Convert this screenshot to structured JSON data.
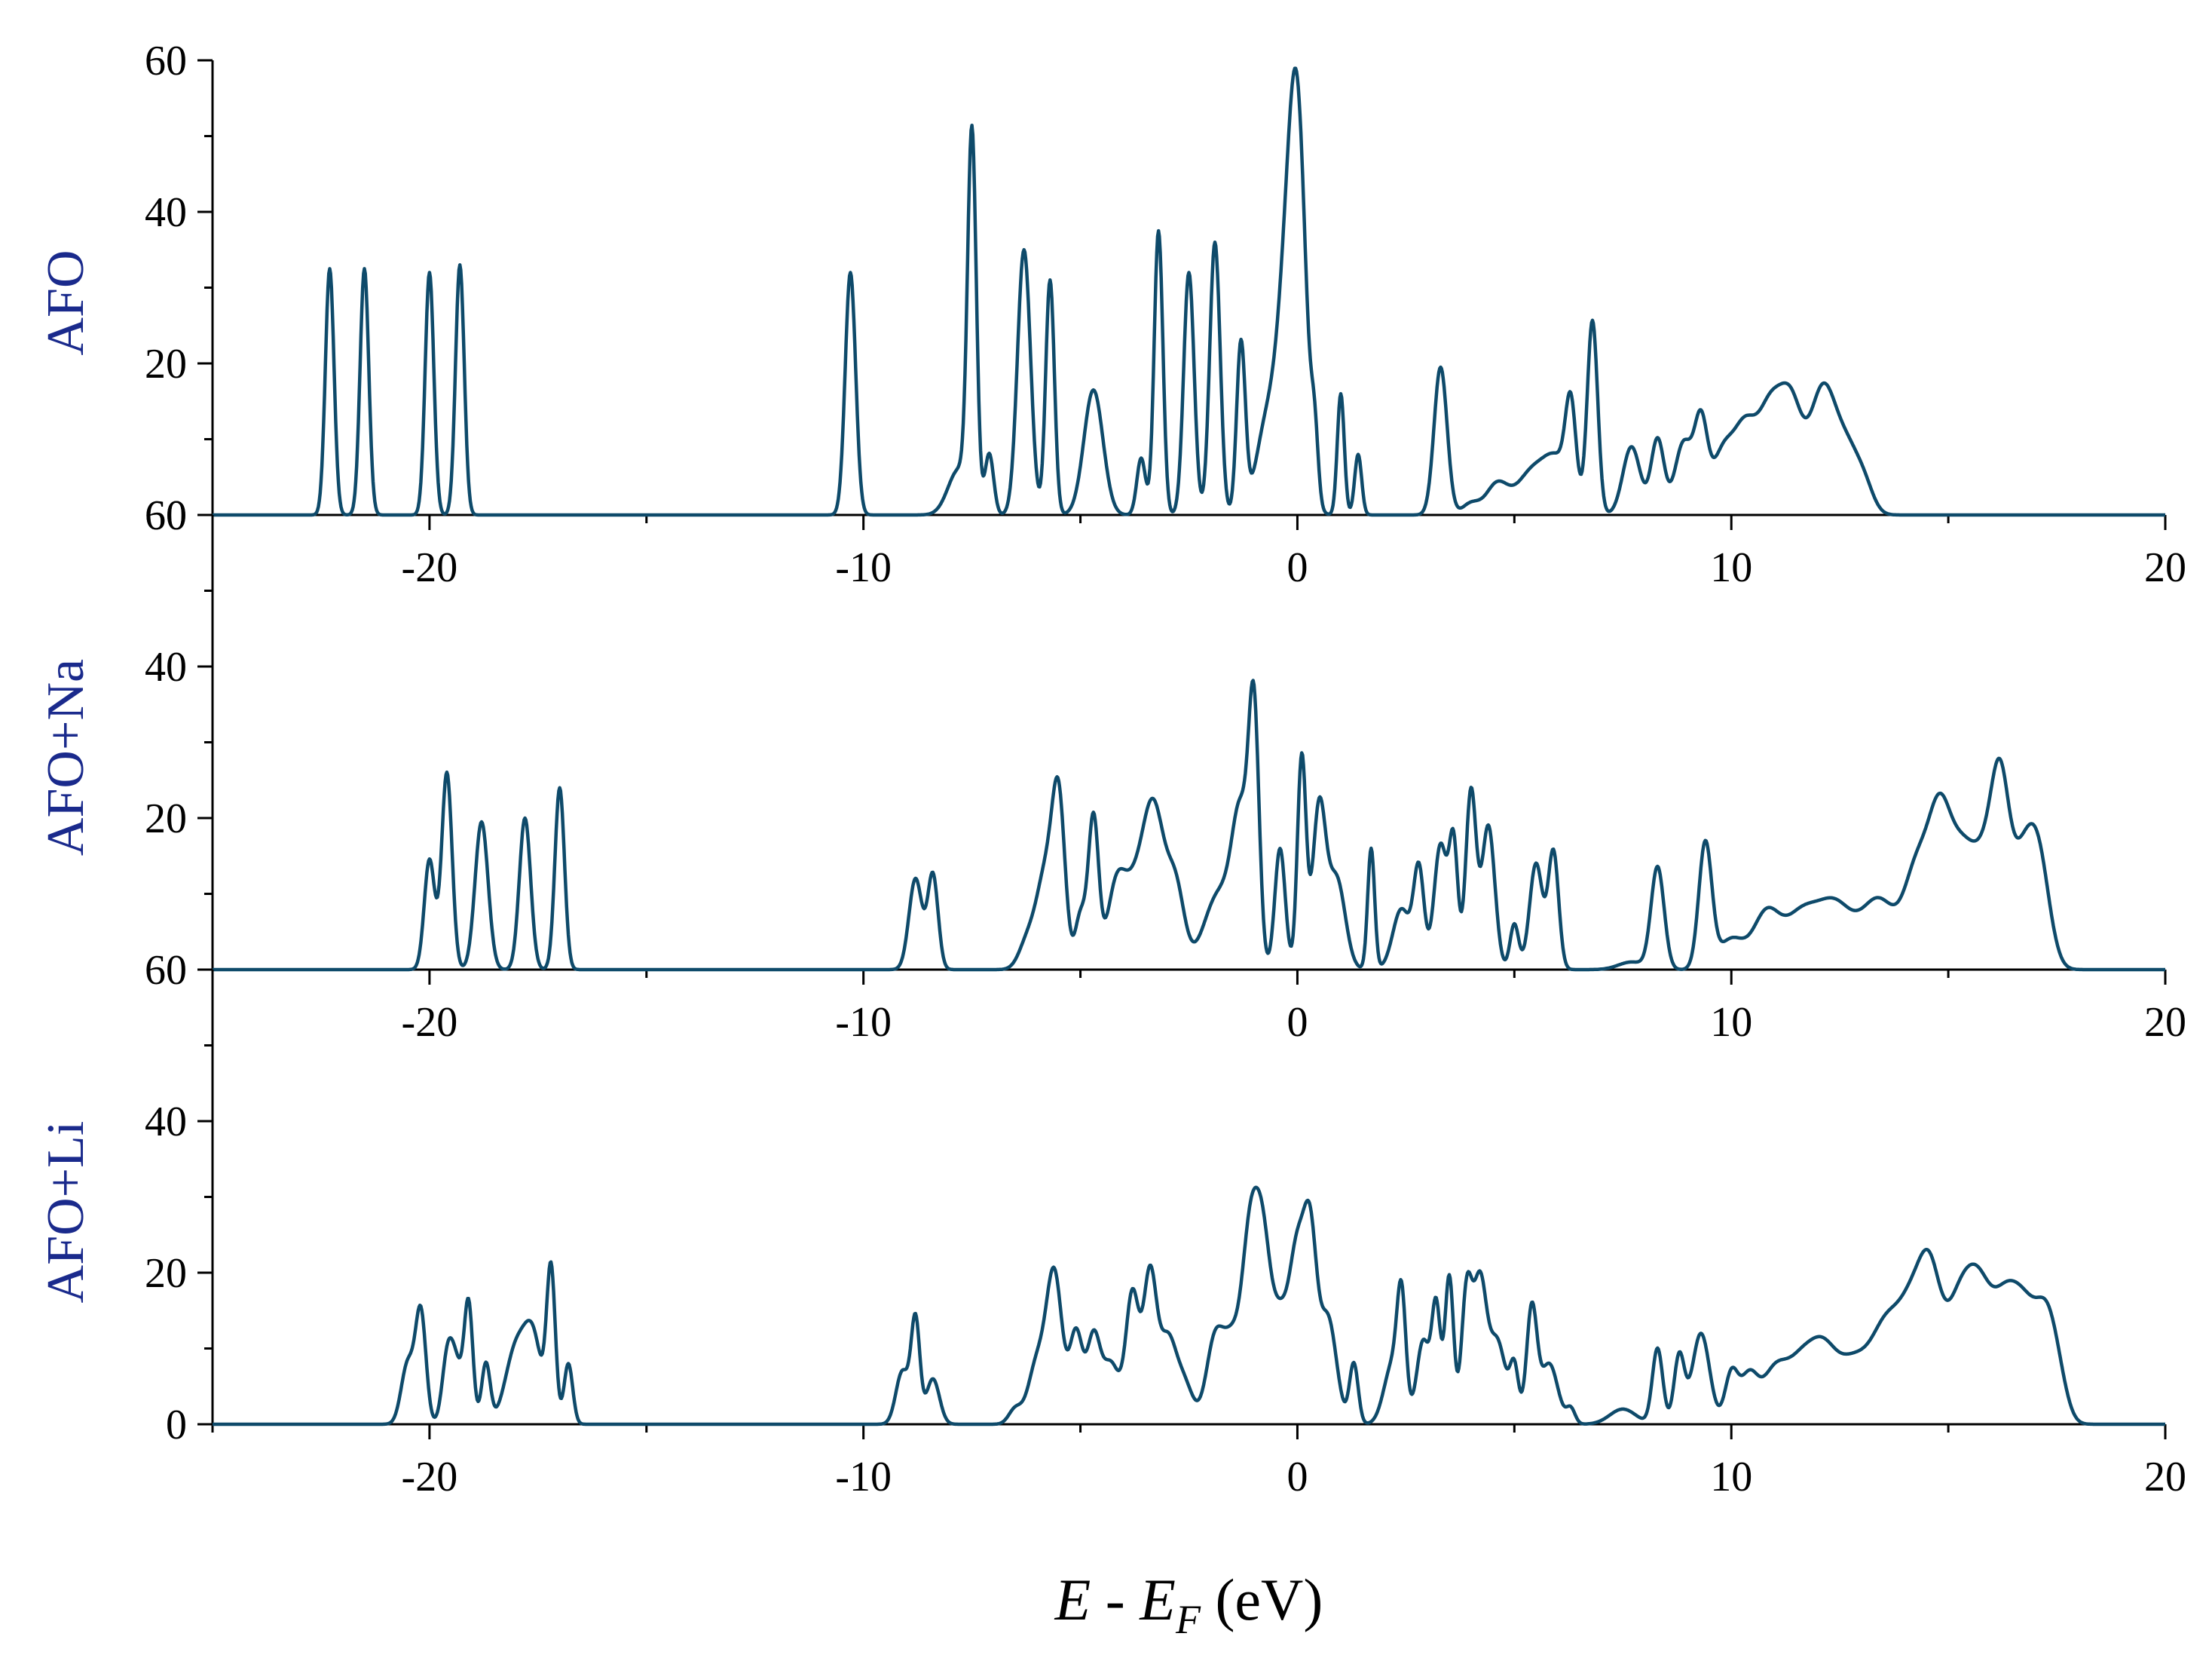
{
  "chart_data": {
    "type": "line",
    "title": "",
    "xlabel": {
      "italic_1": "E",
      "plain_1": " - ",
      "italic_2": "E",
      "subscript": "F",
      "plain_2": " (eV)"
    },
    "xlim": [
      -25,
      20
    ],
    "x_ticks": [
      -20,
      -10,
      0,
      10,
      20
    ],
    "x_tick_labels": [
      "-20",
      "-10",
      "0",
      "10",
      "20"
    ],
    "line_color": "#0e4a6a",
    "label_color": "#1a2a8c",
    "panels": [
      {
        "label": "AFO",
        "ylim": [
          0,
          60
        ],
        "y_ticks": [
          20,
          40,
          60
        ],
        "y_tick_labels": [
          "20",
          "40",
          "60"
        ],
        "baseline_label": "60",
        "peaks": [
          [
            -22.3,
            32.5,
            0.1
          ],
          [
            -21.5,
            32.5,
            0.1
          ],
          [
            -20.0,
            32.0,
            0.1
          ],
          [
            -19.3,
            33.0,
            0.1
          ],
          [
            -10.3,
            32.0,
            0.12
          ],
          [
            -7.8,
            6,
            0.25
          ],
          [
            -7.5,
            48.5,
            0.1
          ],
          [
            -7.1,
            8,
            0.1
          ],
          [
            -6.3,
            35,
            0.15
          ],
          [
            -5.7,
            31,
            0.1
          ],
          [
            -4.7,
            16.5,
            0.22
          ],
          [
            -3.6,
            7.5,
            0.1
          ],
          [
            -3.2,
            37.5,
            0.1
          ],
          [
            -2.5,
            32,
            0.12
          ],
          [
            -1.9,
            36,
            0.12
          ],
          [
            -1.3,
            22.5,
            0.1
          ],
          [
            -0.7,
            12,
            0.25
          ],
          [
            -0.3,
            20,
            0.2
          ],
          [
            0.0,
            51,
            0.2
          ],
          [
            0.4,
            8,
            0.08
          ],
          [
            1.0,
            16,
            0.08
          ],
          [
            1.4,
            8,
            0.08
          ],
          [
            3.3,
            19.5,
            0.15
          ],
          [
            4.0,
            1.5,
            0.2
          ],
          [
            4.6,
            4,
            0.25
          ],
          [
            5.4,
            5.5,
            0.35
          ],
          [
            6.0,
            6.5,
            0.3
          ],
          [
            6.3,
            12,
            0.12
          ],
          [
            6.8,
            25.5,
            0.12
          ],
          [
            7.7,
            9,
            0.2
          ],
          [
            8.3,
            10,
            0.15
          ],
          [
            8.9,
            9.5,
            0.2
          ],
          [
            9.3,
            11.5,
            0.15
          ],
          [
            9.8,
            8,
            0.25
          ],
          [
            10.3,
            10,
            0.25
          ],
          [
            10.9,
            14,
            0.3
          ],
          [
            11.4,
            12,
            0.25
          ],
          [
            12.1,
            16,
            0.3
          ],
          [
            12.7,
            8,
            0.3
          ],
          [
            13.1,
            2,
            0.2
          ]
        ]
      },
      {
        "label": "AFO+Na",
        "ylim": [
          0,
          60
        ],
        "y_ticks": [
          20,
          40,
          60
        ],
        "y_tick_labels": [
          "20",
          "40",
          "60"
        ],
        "baseline_label": "60",
        "peaks": [
          [
            -20.0,
            14.5,
            0.12
          ],
          [
            -19.6,
            26,
            0.12
          ],
          [
            -18.8,
            19.5,
            0.15
          ],
          [
            -17.8,
            20,
            0.13
          ],
          [
            -17.0,
            24,
            0.11
          ],
          [
            -8.8,
            12,
            0.15
          ],
          [
            -8.4,
            12.5,
            0.12
          ],
          [
            -6.2,
            4,
            0.2
          ],
          [
            -5.8,
            12,
            0.2
          ],
          [
            -5.5,
            21,
            0.15
          ],
          [
            -5.0,
            7,
            0.12
          ],
          [
            -4.7,
            20,
            0.12
          ],
          [
            -4.2,
            8,
            0.2
          ],
          [
            -3.8,
            10,
            0.3
          ],
          [
            -3.3,
            19.5,
            0.25
          ],
          [
            -2.8,
            10,
            0.2
          ],
          [
            -1.8,
            10,
            0.35
          ],
          [
            -1.3,
            18,
            0.2
          ],
          [
            -1.0,
            31,
            0.12
          ],
          [
            -0.4,
            16,
            0.12
          ],
          [
            0.1,
            28,
            0.1
          ],
          [
            0.5,
            21,
            0.15
          ],
          [
            0.9,
            12,
            0.2
          ],
          [
            1.7,
            16,
            0.08
          ],
          [
            2.4,
            8,
            0.2
          ],
          [
            2.8,
            13,
            0.12
          ],
          [
            3.3,
            16.5,
            0.15
          ],
          [
            3.6,
            16,
            0.1
          ],
          [
            4.0,
            23.5,
            0.12
          ],
          [
            4.4,
            19,
            0.15
          ],
          [
            5.0,
            6,
            0.1
          ],
          [
            5.5,
            14,
            0.15
          ],
          [
            5.9,
            15.5,
            0.12
          ],
          [
            7.7,
            1,
            0.3
          ],
          [
            8.3,
            13.5,
            0.15
          ],
          [
            9.4,
            16.5,
            0.15
          ],
          [
            10.0,
            4,
            0.3
          ],
          [
            10.8,
            7,
            0.3
          ],
          [
            11.6,
            7,
            0.4
          ],
          [
            12.4,
            8,
            0.4
          ],
          [
            13.4,
            9,
            0.4
          ],
          [
            14.3,
            13,
            0.3
          ],
          [
            14.8,
            16.5,
            0.25
          ],
          [
            15.3,
            14,
            0.3
          ],
          [
            15.9,
            13.5,
            0.3
          ],
          [
            16.2,
            16,
            0.2
          ],
          [
            16.7,
            13.5,
            0.3
          ],
          [
            17.1,
            11.5,
            0.25
          ]
        ]
      },
      {
        "label": "AFO+Li",
        "ylim": [
          0,
          60
        ],
        "y_ticks": [
          0,
          20,
          40
        ],
        "y_tick_labels": [
          "0",
          "20",
          "40"
        ],
        "baseline_label": "0",
        "peaks": [
          [
            -20.5,
            8,
            0.15
          ],
          [
            -20.2,
            14.5,
            0.12
          ],
          [
            -19.6,
            7,
            0.12
          ],
          [
            -19.4,
            8,
            0.15
          ],
          [
            -19.1,
            15.5,
            0.1
          ],
          [
            -18.7,
            8,
            0.1
          ],
          [
            -18.0,
            10,
            0.25
          ],
          [
            -17.6,
            10,
            0.2
          ],
          [
            -17.2,
            20,
            0.1
          ],
          [
            -16.8,
            8,
            0.1
          ],
          [
            -9.1,
            7,
            0.15
          ],
          [
            -8.8,
            13.5,
            0.1
          ],
          [
            -8.4,
            6,
            0.15
          ],
          [
            -6.5,
            2,
            0.15
          ],
          [
            -6.0,
            8,
            0.2
          ],
          [
            -5.6,
            19.5,
            0.18
          ],
          [
            -5.1,
            12,
            0.15
          ],
          [
            -4.7,
            11,
            0.15
          ],
          [
            -4.3,
            8,
            0.2
          ],
          [
            -3.8,
            17,
            0.15
          ],
          [
            -3.4,
            19,
            0.15
          ],
          [
            -3.0,
            11,
            0.2
          ],
          [
            -2.6,
            5,
            0.2
          ],
          [
            -1.9,
            11,
            0.2
          ],
          [
            -1.5,
            10,
            0.2
          ],
          [
            -1.1,
            22,
            0.18
          ],
          [
            -0.8,
            21.5,
            0.18
          ],
          [
            -0.4,
            13,
            0.2
          ],
          [
            0.0,
            21,
            0.18
          ],
          [
            0.3,
            21.5,
            0.15
          ],
          [
            0.7,
            14,
            0.2
          ],
          [
            1.3,
            8,
            0.1
          ],
          [
            2.2,
            8,
            0.2
          ],
          [
            2.4,
            14,
            0.1
          ],
          [
            2.9,
            11,
            0.15
          ],
          [
            3.2,
            15,
            0.1
          ],
          [
            3.5,
            19.5,
            0.1
          ],
          [
            3.9,
            17,
            0.12
          ],
          [
            4.2,
            18,
            0.15
          ],
          [
            4.6,
            11,
            0.2
          ],
          [
            5.0,
            7,
            0.1
          ],
          [
            5.4,
            15,
            0.12
          ],
          [
            5.8,
            8,
            0.2
          ],
          [
            6.3,
            2,
            0.1
          ],
          [
            7.5,
            2,
            0.3
          ],
          [
            8.3,
            10,
            0.12
          ],
          [
            8.8,
            9,
            0.12
          ],
          [
            9.3,
            12,
            0.2
          ],
          [
            10.0,
            6.5,
            0.15
          ],
          [
            10.4,
            6,
            0.2
          ],
          [
            11.0,
            7,
            0.3
          ],
          [
            11.6,
            7,
            0.3
          ],
          [
            12.1,
            8,
            0.3
          ],
          [
            12.8,
            8,
            0.4
          ],
          [
            13.6,
            12,
            0.35
          ],
          [
            14.2,
            13,
            0.3
          ],
          [
            14.6,
            15,
            0.25
          ],
          [
            15.2,
            13.5,
            0.3
          ],
          [
            15.7,
            15.5,
            0.3
          ],
          [
            16.3,
            13.5,
            0.3
          ],
          [
            16.8,
            12.5,
            0.3
          ],
          [
            17.3,
            12,
            0.25
          ],
          [
            17.6,
            2,
            0.2
          ]
        ]
      }
    ]
  }
}
